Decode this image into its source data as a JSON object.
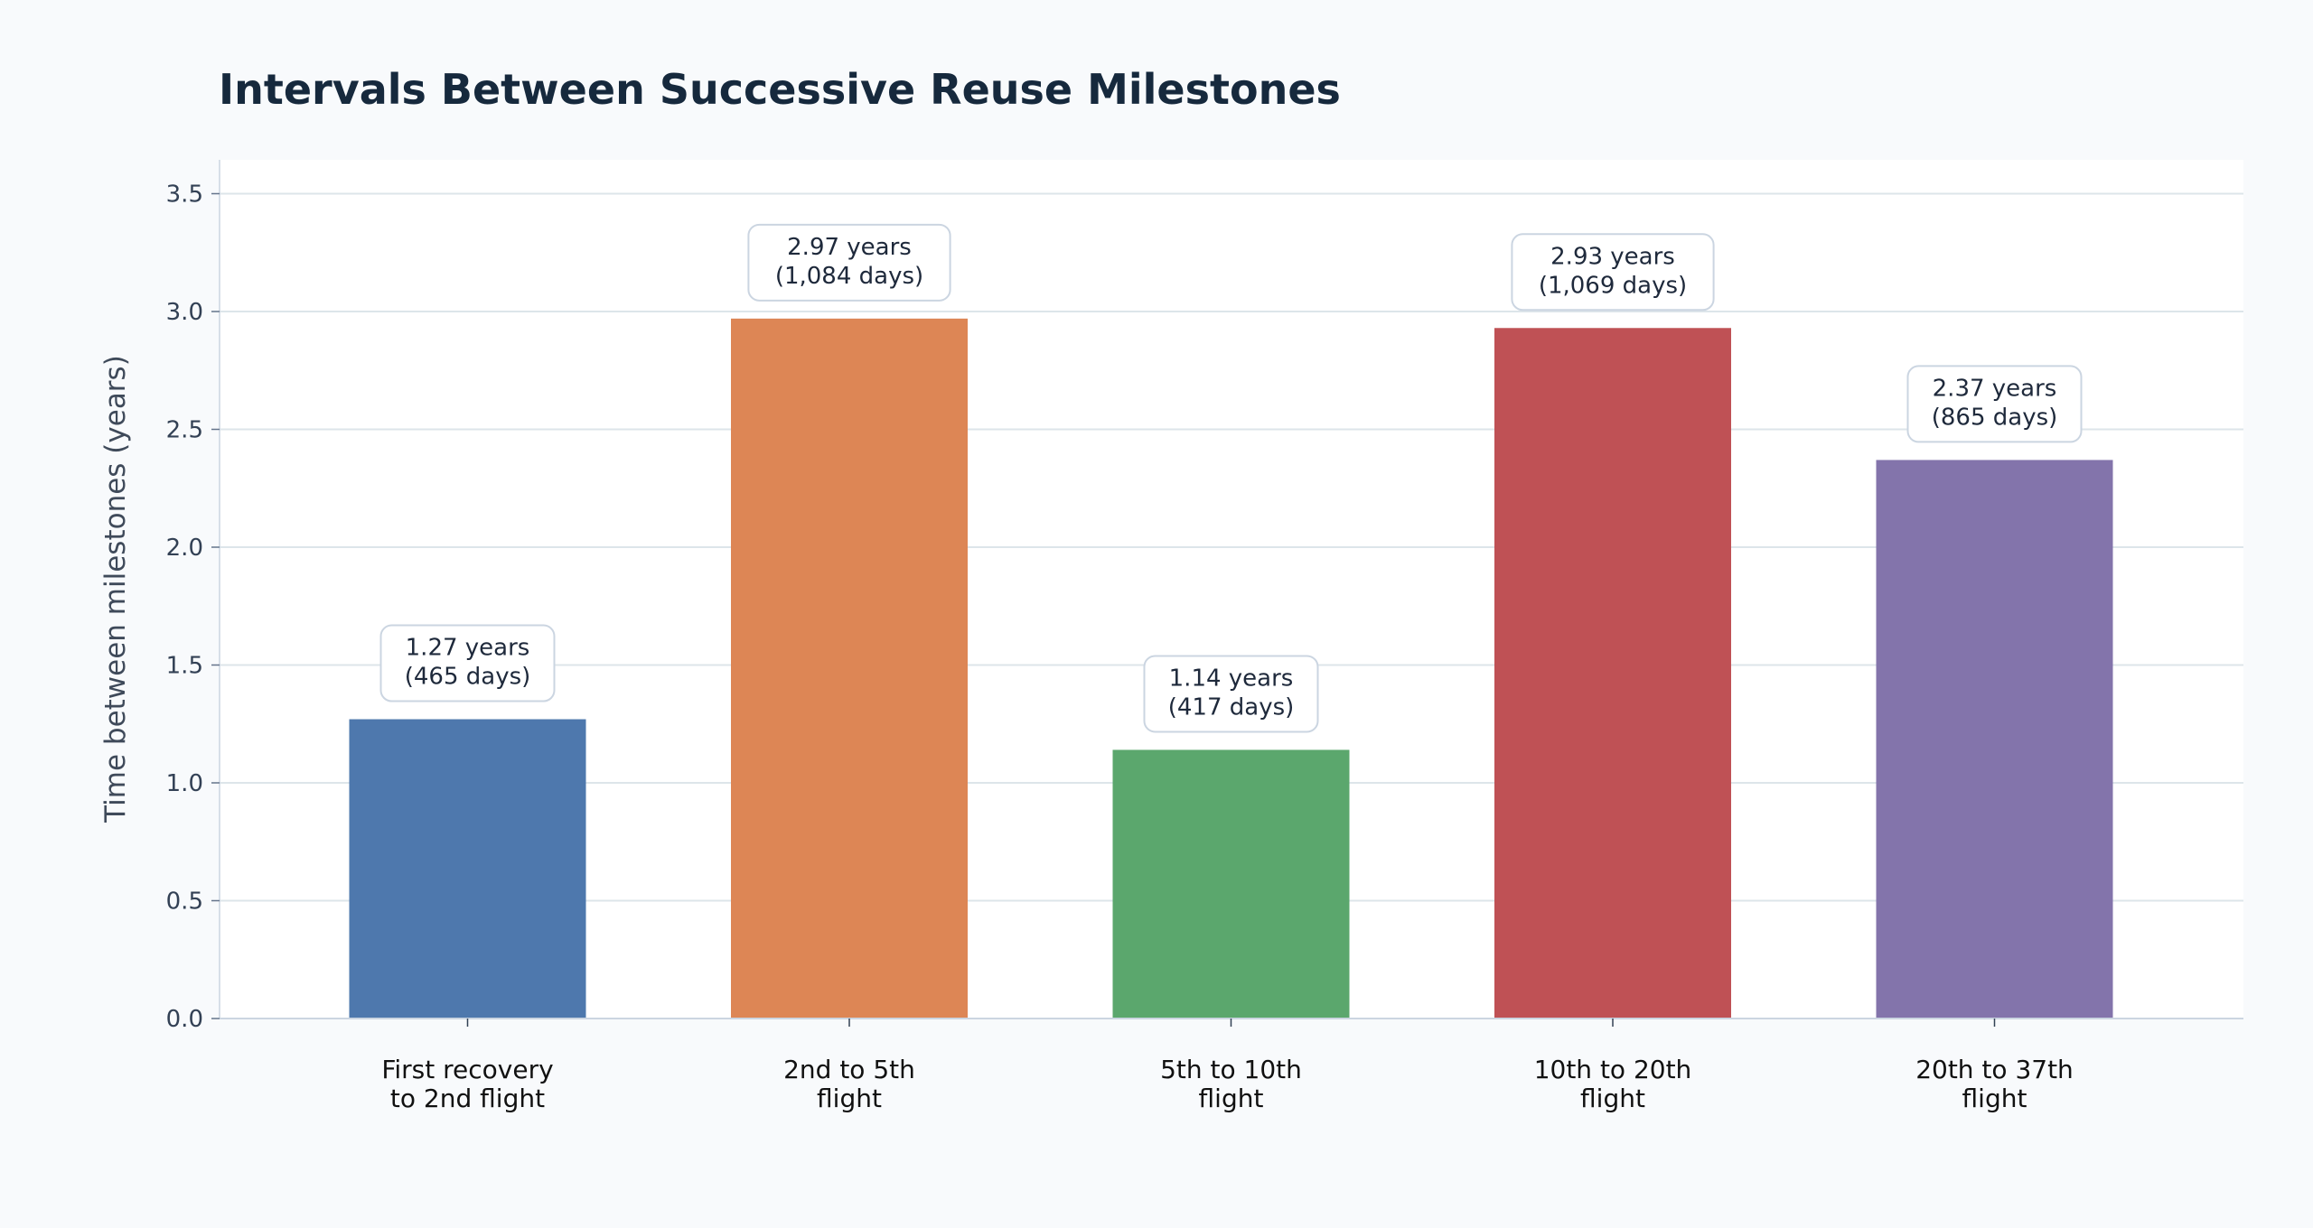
{
  "chart_data": {
    "type": "bar",
    "title": "Intervals Between Successive Reuse Milestones",
    "xlabel": "",
    "ylabel": "Time between milestones (years)",
    "ylim": [
      0,
      3.65
    ],
    "yticks": [
      "0.0",
      "0.5",
      "1.0",
      "1.5",
      "2.0",
      "2.5",
      "3.0",
      "3.5"
    ],
    "grid": true,
    "categories": [
      [
        "First recovery",
        "to 2nd flight"
      ],
      [
        "2nd to 5th",
        "flight"
      ],
      [
        "5th to 10th",
        "flight"
      ],
      [
        "10th to 20th",
        "flight"
      ],
      [
        "20th to 37th",
        "flight"
      ]
    ],
    "values": [
      1.27,
      2.97,
      1.14,
      2.93,
      2.37
    ],
    "data_labels": [
      [
        "1.27 years",
        "(465 days)"
      ],
      [
        "2.97 years",
        "(1,084 days)"
      ],
      [
        "1.14 years",
        "(417 days)"
      ],
      [
        "2.93 years",
        "(1,069 days)"
      ],
      [
        "2.37 years",
        "(865 days)"
      ]
    ],
    "colors": [
      "#4e78ad",
      "#dd8655",
      "#5ba76d",
      "#bf5155",
      "#8374ab"
    ]
  }
}
